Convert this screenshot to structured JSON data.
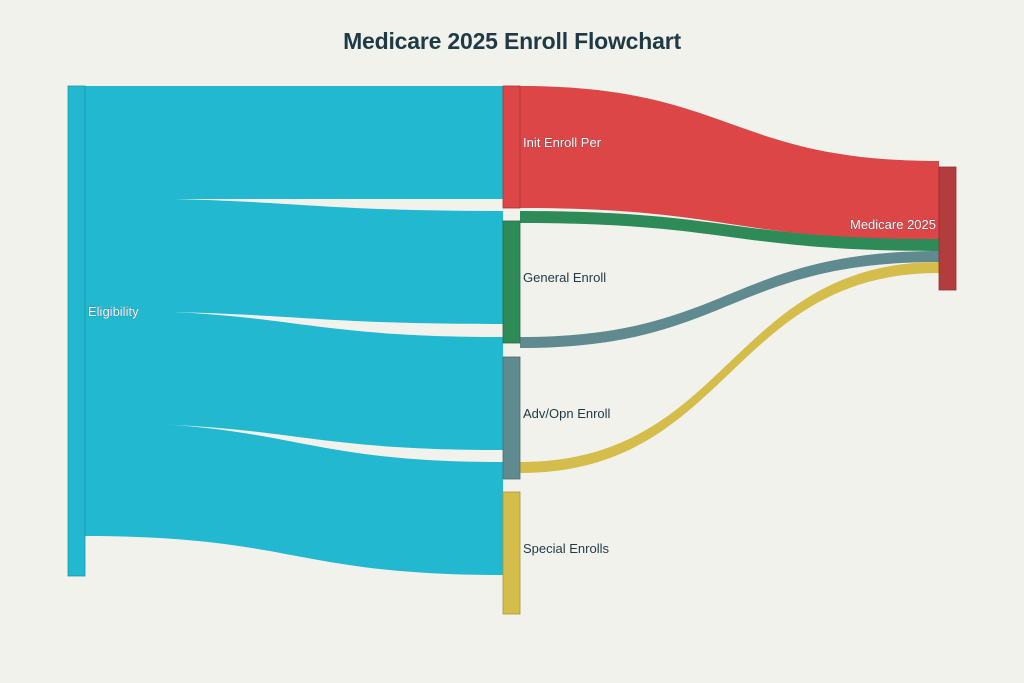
{
  "title": "Medicare 2025 Enroll Flowchart",
  "nodes": [
    {
      "id": "eligibility",
      "label": "Eligibility",
      "color": "#22b8cf"
    },
    {
      "id": "init",
      "label": "Init Enroll Per",
      "color": "#dc4647"
    },
    {
      "id": "general",
      "label": "General Enroll",
      "color": "#2e8b57"
    },
    {
      "id": "adv",
      "label": "Adv/Opn Enroll",
      "color": "#5f8a8f"
    },
    {
      "id": "special",
      "label": "Special Enrolls",
      "color": "#d5bd4b"
    },
    {
      "id": "medicare",
      "label": "Medicare 2025",
      "color": "#b33d3d"
    }
  ],
  "links": [
    {
      "source": "eligibility",
      "target": "init",
      "color": "#22b8cf"
    },
    {
      "source": "eligibility",
      "target": "general",
      "color": "#22b8cf"
    },
    {
      "source": "eligibility",
      "target": "adv",
      "color": "#22b8cf"
    },
    {
      "source": "eligibility",
      "target": "special",
      "color": "#22b8cf"
    },
    {
      "source": "init",
      "target": "medicare",
      "color": "#dc4647"
    },
    {
      "source": "general",
      "target": "medicare",
      "color": "#2e8b57"
    },
    {
      "source": "adv",
      "target": "medicare",
      "color": "#5f8a8f"
    },
    {
      "source": "special",
      "target": "medicare",
      "color": "#d5bd4b"
    }
  ]
}
